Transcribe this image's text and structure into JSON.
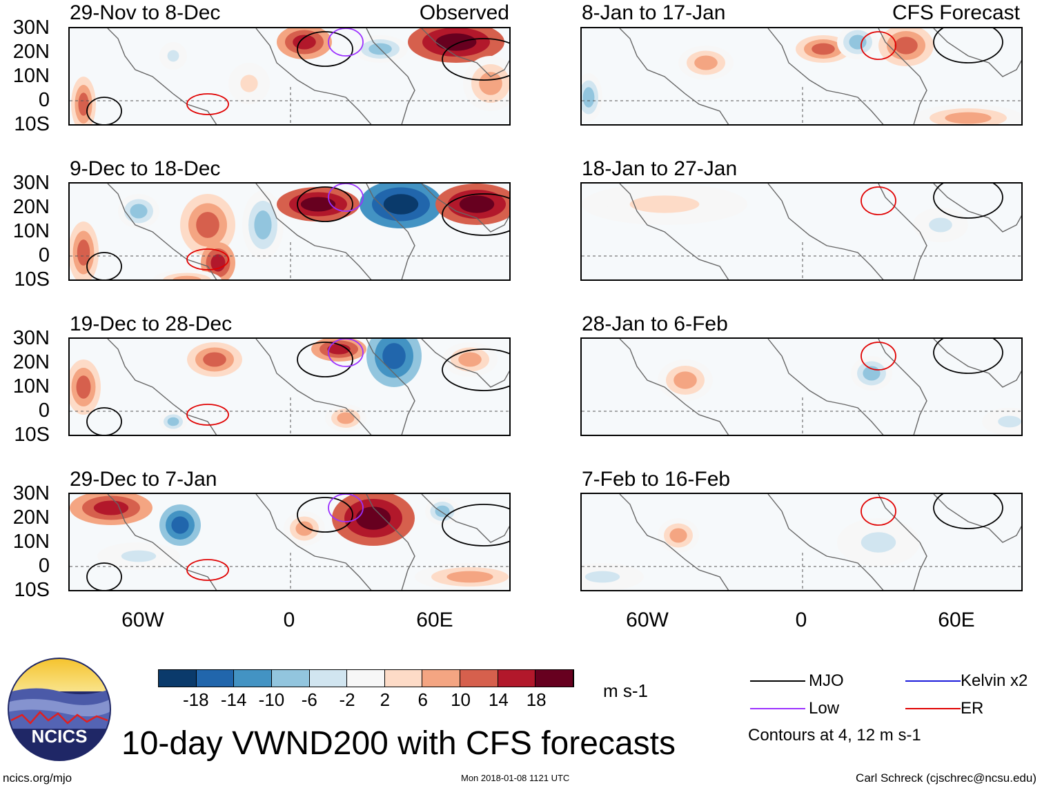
{
  "title": "10-day VWND200 with CFS forecasts",
  "logo_text": "NCICS",
  "footer": {
    "left": "ncics.org/mjo",
    "center": "Mon 2018-01-08 1121 UTC",
    "right": "Carl Schreck (cjschrec@ncsu.edu)"
  },
  "column_tags": {
    "observed": "Observed",
    "forecast": "CFS Forecast"
  },
  "panels": [
    {
      "title": "29-Nov to 8-Dec",
      "type": "observed"
    },
    {
      "title": "9-Dec to 18-Dec",
      "type": "observed"
    },
    {
      "title": "19-Dec to 28-Dec",
      "type": "observed"
    },
    {
      "title": "29-Dec to 7-Jan",
      "type": "observed"
    },
    {
      "title": "8-Jan to 17-Jan",
      "type": "forecast"
    },
    {
      "title": "18-Jan to 27-Jan",
      "type": "forecast"
    },
    {
      "title": "28-Jan to 6-Feb",
      "type": "forecast"
    },
    {
      "title": "7-Feb to 16-Feb",
      "type": "forecast"
    }
  ],
  "chart_data": {
    "type": "heatmap",
    "variable": "VWND200",
    "units": "m s-1",
    "lat_ticks": [
      "30N",
      "20N",
      "10N",
      "0",
      "10S"
    ],
    "lon_ticks": [
      "60W",
      "0",
      "60E"
    ],
    "colorbar": {
      "labels": [
        "-18",
        "-14",
        "-10",
        "-6",
        "-2",
        "2",
        "6",
        "10",
        "14",
        "18"
      ],
      "colors": [
        "#0a3a6b",
        "#2166ac",
        "#4393c3",
        "#92c5de",
        "#d1e5f0",
        "#f7f7f7",
        "#fddbc7",
        "#f4a582",
        "#d6604d",
        "#b2182b",
        "#67001f"
      ]
    },
    "legend": [
      {
        "label": "MJO",
        "color": "#000000"
      },
      {
        "label": "Kelvin x2",
        "color": "#1a1adb"
      },
      {
        "label": "Low",
        "color": "#9b30ff"
      },
      {
        "label": "ER",
        "color": "#e00000"
      }
    ],
    "contour_note": "Contours at 4, 12 m s-1"
  }
}
